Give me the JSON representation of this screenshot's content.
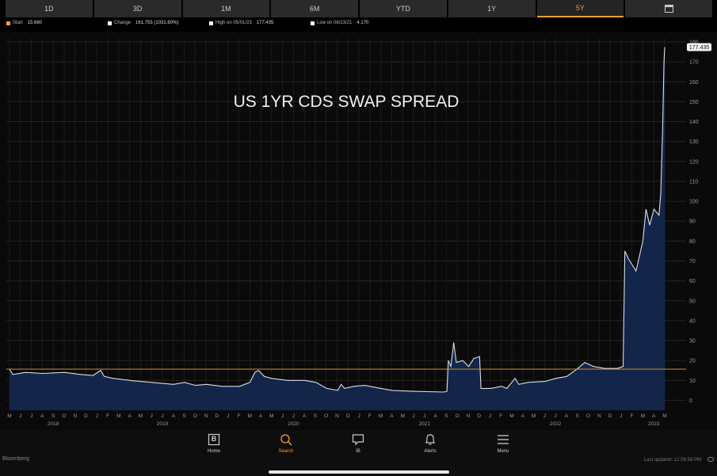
{
  "tabs": [
    {
      "label": "1D"
    },
    {
      "label": "3D"
    },
    {
      "label": "1M"
    },
    {
      "label": "6M"
    },
    {
      "label": "YTD"
    },
    {
      "label": "1Y"
    },
    {
      "label": "5Y",
      "active": true
    },
    {
      "label": "",
      "icon": "calendar-icon"
    }
  ],
  "legend": {
    "start": {
      "label": "Start",
      "value": "15.680",
      "color": "#f0a030"
    },
    "change": {
      "label": "Change",
      "value": "161.755 (1031.60%)",
      "color": "#ffffff"
    },
    "high": {
      "label": "High on 05/01/23",
      "value": "177.435",
      "color": "#ffffff"
    },
    "low": {
      "label": "Low on 08/23/21",
      "value": "4.170",
      "color": "#ffffff"
    }
  },
  "chart_data": {
    "type": "area",
    "title": "US 1YR CDS SWAP SPREAD",
    "ylim": [
      -5,
      182
    ],
    "yticks": [
      0,
      10,
      20,
      30,
      40,
      50,
      60,
      70,
      80,
      90,
      100,
      110,
      120,
      130,
      140,
      150,
      160,
      170,
      180
    ],
    "start_line": 15.68,
    "last_value_label": "177.435",
    "month_labels": [
      "M",
      "J",
      "J",
      "A",
      "S",
      "O",
      "N",
      "D",
      "J",
      "F",
      "M",
      "A",
      "M",
      "J",
      "J",
      "A",
      "S",
      "O",
      "N",
      "D",
      "J",
      "F",
      "M",
      "A",
      "M",
      "J",
      "J",
      "A",
      "S",
      "O",
      "N",
      "D",
      "J",
      "F",
      "M",
      "A",
      "M",
      "J",
      "J",
      "A",
      "S",
      "O",
      "N",
      "D",
      "J",
      "F",
      "M",
      "A",
      "M",
      "J",
      "J",
      "A",
      "S",
      "O",
      "N",
      "D",
      "J",
      "F",
      "M",
      "A",
      "M"
    ],
    "year_labels": [
      {
        "label": "2018",
        "month_index": 4
      },
      {
        "label": "2019",
        "month_index": 14
      },
      {
        "label": "2020",
        "month_index": 26
      },
      {
        "label": "2021",
        "month_index": 38
      },
      {
        "label": "2022",
        "month_index": 50
      },
      {
        "label": "2023",
        "month_index": 59
      }
    ],
    "x_start": "2018-05-01",
    "x_end": "2023-05-01",
    "series": [
      {
        "points": [
          [
            "2018-05-01",
            15.68
          ],
          [
            "2018-05-10",
            13
          ],
          [
            "2018-06-15",
            14
          ],
          [
            "2018-08-01",
            13.5
          ],
          [
            "2018-10-01",
            14
          ],
          [
            "2018-11-15",
            13
          ],
          [
            "2018-12-20",
            12.5
          ],
          [
            "2019-01-10",
            15
          ],
          [
            "2019-01-20",
            12
          ],
          [
            "2019-02-15",
            11
          ],
          [
            "2019-04-01",
            10
          ],
          [
            "2019-06-01",
            9
          ],
          [
            "2019-08-01",
            8
          ],
          [
            "2019-09-01",
            9
          ],
          [
            "2019-10-01",
            7.5
          ],
          [
            "2019-11-01",
            8
          ],
          [
            "2019-12-15",
            7
          ],
          [
            "2020-02-01",
            7
          ],
          [
            "2020-03-01",
            9
          ],
          [
            "2020-03-15",
            14
          ],
          [
            "2020-03-25",
            15
          ],
          [
            "2020-04-10",
            12
          ],
          [
            "2020-05-01",
            11
          ],
          [
            "2020-06-15",
            10
          ],
          [
            "2020-08-01",
            10
          ],
          [
            "2020-09-01",
            9
          ],
          [
            "2020-10-01",
            6
          ],
          [
            "2020-11-01",
            5
          ],
          [
            "2020-11-10",
            8
          ],
          [
            "2020-11-20",
            6
          ],
          [
            "2020-12-15",
            7
          ],
          [
            "2021-01-15",
            7.5
          ],
          [
            "2021-03-01",
            6
          ],
          [
            "2021-04-01",
            5
          ],
          [
            "2021-06-01",
            4.5
          ],
          [
            "2021-08-23",
            4.17
          ],
          [
            "2021-09-01",
            4.5
          ],
          [
            "2021-09-05",
            20
          ],
          [
            "2021-09-12",
            17
          ],
          [
            "2021-09-20",
            29
          ],
          [
            "2021-09-27",
            19
          ],
          [
            "2021-10-15",
            20
          ],
          [
            "2021-11-01",
            17
          ],
          [
            "2021-11-15",
            21
          ],
          [
            "2021-12-01",
            22
          ],
          [
            "2021-12-05",
            6
          ],
          [
            "2022-01-01",
            6
          ],
          [
            "2022-02-01",
            7
          ],
          [
            "2022-02-15",
            6
          ],
          [
            "2022-03-10",
            11
          ],
          [
            "2022-03-20",
            8
          ],
          [
            "2022-04-15",
            9
          ],
          [
            "2022-06-01",
            9.5
          ],
          [
            "2022-07-01",
            11
          ],
          [
            "2022-08-01",
            12
          ],
          [
            "2022-09-01",
            16
          ],
          [
            "2022-09-20",
            19
          ],
          [
            "2022-10-15",
            17
          ],
          [
            "2022-11-15",
            16
          ],
          [
            "2022-12-20",
            16
          ],
          [
            "2023-01-05",
            17
          ],
          [
            "2023-01-10",
            75
          ],
          [
            "2023-01-20",
            71
          ],
          [
            "2023-02-10",
            65
          ],
          [
            "2023-03-01",
            80
          ],
          [
            "2023-03-10",
            96
          ],
          [
            "2023-03-20",
            88
          ],
          [
            "2023-04-01",
            96
          ],
          [
            "2023-04-15",
            93
          ],
          [
            "2023-04-20",
            104
          ],
          [
            "2023-04-25",
            135
          ],
          [
            "2023-04-29",
            170
          ],
          [
            "2023-05-01",
            177.435
          ]
        ]
      }
    ]
  },
  "nav": {
    "items": [
      {
        "label": "Home",
        "icon": "home-icon"
      },
      {
        "label": "Search",
        "icon": "search-icon",
        "active": true
      },
      {
        "label": "IB",
        "icon": "chat-icon"
      },
      {
        "label": "Alerts",
        "icon": "bell-icon"
      },
      {
        "label": "Menu",
        "icon": "menu-icon"
      }
    ],
    "home_glyph": "B",
    "brand": "Bloomberg",
    "last_updated": "Last updated: 12:06:58 PM"
  },
  "colors": {
    "background": "#0a0a0a",
    "fill": "#14254a",
    "line": "#d8dde8",
    "start_line": "#f0a030",
    "grid": "#262626"
  }
}
